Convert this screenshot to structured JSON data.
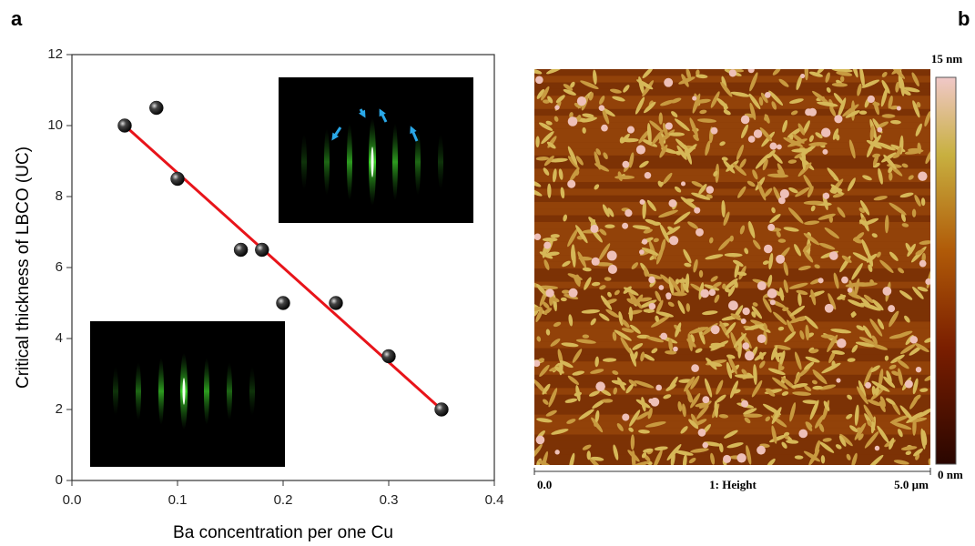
{
  "chart_data": {
    "type": "scatter",
    "panel_label": "a",
    "xlabel": "Ba concentration per one Cu",
    "ylabel": "Critical thickness of LBCO (UC)",
    "xlim": [
      0,
      0.4
    ],
    "ylim": [
      0,
      12
    ],
    "xticks": [
      {
        "value": 0,
        "label": "0.0"
      },
      {
        "value": 0.1,
        "label": "0.1"
      },
      {
        "value": 0.2,
        "label": "0.2"
      },
      {
        "value": 0.3,
        "label": "0.3"
      },
      {
        "value": 0.4,
        "label": "0.4"
      }
    ],
    "yticks": [
      0,
      2,
      4,
      6,
      8,
      10,
      12
    ],
    "series": [
      {
        "style": "markers",
        "color": "#111111",
        "x": [
          0.05,
          0.08,
          0.1,
          0.16,
          0.18,
          0.2,
          0.25,
          0.3,
          0.35
        ],
        "values": [
          10,
          10.5,
          8.5,
          6.5,
          6.5,
          5,
          5,
          3.5,
          2
        ]
      },
      {
        "style": "line",
        "color": "#e8141a",
        "x": [
          0.05,
          0.35
        ],
        "values": [
          10,
          2
        ]
      }
    ]
  },
  "afm_panel": {
    "panel_label": "b",
    "colorbar_max": "15 nm",
    "colorbar_min": "0 nm",
    "scale_start": "0.0",
    "scale_title": "1: Height",
    "scale_end": "5.0 µm"
  }
}
